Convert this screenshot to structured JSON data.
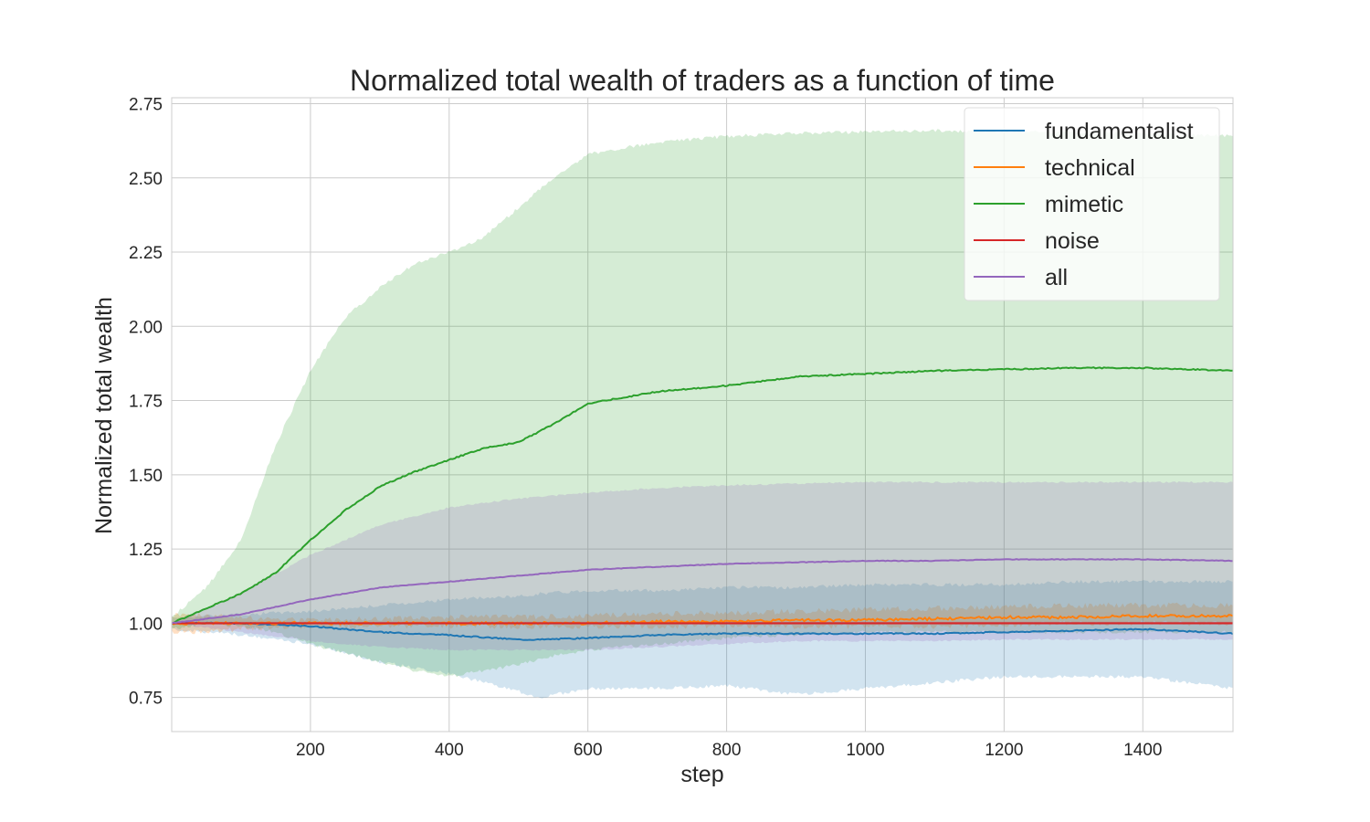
{
  "chart_data": {
    "type": "line",
    "title": "Normalized total wealth of traders as a function of time",
    "xlabel": "step",
    "ylabel": "Normalized total wealth",
    "xlim": [
      0,
      1530
    ],
    "ylim": [
      0.635,
      2.77
    ],
    "xticks": [
      200,
      400,
      600,
      800,
      1000,
      1200,
      1400
    ],
    "yticks": [
      0.75,
      1.0,
      1.25,
      1.5,
      1.75,
      2.0,
      2.25,
      2.5,
      2.75
    ],
    "ytick_labels": [
      "0.75",
      "1.00",
      "1.25",
      "1.50",
      "1.75",
      "2.00",
      "2.25",
      "2.50",
      "2.75"
    ],
    "grid": true,
    "legend_position": "top-right",
    "series": [
      {
        "name": "fundamentalist",
        "color": "#1f77b4",
        "x": [
          0,
          100,
          200,
          300,
          400,
          500,
          530,
          600,
          700,
          800,
          900,
          1000,
          1100,
          1200,
          1300,
          1400,
          1530
        ],
        "mean": [
          1.0,
          1.0,
          0.99,
          0.97,
          0.96,
          0.945,
          0.945,
          0.95,
          0.96,
          0.965,
          0.965,
          0.965,
          0.965,
          0.97,
          0.975,
          0.98,
          0.965
        ],
        "lower": [
          0.98,
          0.96,
          0.93,
          0.87,
          0.83,
          0.77,
          0.75,
          0.78,
          0.78,
          0.79,
          0.76,
          0.78,
          0.8,
          0.82,
          0.82,
          0.82,
          0.78
        ],
        "upper": [
          1.02,
          1.03,
          1.04,
          1.06,
          1.08,
          1.09,
          1.1,
          1.11,
          1.11,
          1.12,
          1.12,
          1.13,
          1.13,
          1.13,
          1.14,
          1.14,
          1.14
        ]
      },
      {
        "name": "technical",
        "color": "#ff7f0e",
        "x": [
          0,
          100,
          200,
          300,
          400,
          500,
          600,
          700,
          800,
          900,
          1000,
          1100,
          1200,
          1300,
          1400,
          1530
        ],
        "mean": [
          1.0,
          1.0,
          1.0,
          1.0,
          1.0,
          1.0,
          1.0,
          1.005,
          1.005,
          1.01,
          1.01,
          1.015,
          1.02,
          1.02,
          1.025,
          1.025
        ],
        "lower": [
          0.97,
          0.98,
          0.99,
          0.99,
          0.99,
          0.99,
          0.99,
          0.99,
          0.99,
          0.99,
          0.99,
          0.99,
          0.995,
          1.0,
          1.0,
          1.0
        ],
        "upper": [
          1.03,
          1.02,
          1.01,
          1.015,
          1.02,
          1.02,
          1.025,
          1.03,
          1.035,
          1.04,
          1.045,
          1.05,
          1.055,
          1.06,
          1.06,
          1.06
        ]
      },
      {
        "name": "mimetic",
        "color": "#2ca02c",
        "x": [
          0,
          50,
          100,
          150,
          200,
          250,
          300,
          350,
          400,
          450,
          500,
          550,
          600,
          700,
          800,
          900,
          1000,
          1100,
          1200,
          1300,
          1400,
          1530
        ],
        "mean": [
          1.0,
          1.05,
          1.1,
          1.17,
          1.28,
          1.38,
          1.46,
          1.51,
          1.55,
          1.59,
          1.61,
          1.67,
          1.74,
          1.78,
          1.8,
          1.83,
          1.84,
          1.85,
          1.855,
          1.86,
          1.86,
          1.85
        ],
        "lower": [
          0.98,
          1.0,
          0.99,
          0.97,
          0.93,
          0.9,
          0.87,
          0.84,
          0.82,
          0.84,
          0.86,
          0.89,
          0.91,
          0.93,
          0.95,
          0.96,
          0.97,
          0.97,
          0.97,
          0.97,
          0.97,
          0.97
        ],
        "upper": [
          1.02,
          1.12,
          1.28,
          1.6,
          1.85,
          2.03,
          2.13,
          2.21,
          2.25,
          2.3,
          2.4,
          2.5,
          2.58,
          2.62,
          2.64,
          2.65,
          2.655,
          2.66,
          2.655,
          2.655,
          2.65,
          2.64
        ]
      },
      {
        "name": "noise",
        "color": "#d62728",
        "x": [
          0,
          300,
          600,
          900,
          1200,
          1530
        ],
        "mean": [
          1.0,
          1.0,
          1.0,
          1.0,
          1.0,
          1.0
        ],
        "lower": [
          0.995,
          0.995,
          0.995,
          0.995,
          0.995,
          0.995
        ],
        "upper": [
          1.005,
          1.005,
          1.005,
          1.005,
          1.005,
          1.005
        ]
      },
      {
        "name": "all",
        "color": "#9467bd",
        "x": [
          0,
          100,
          200,
          300,
          400,
          500,
          600,
          700,
          800,
          900,
          1000,
          1100,
          1200,
          1300,
          1400,
          1530
        ],
        "mean": [
          1.0,
          1.03,
          1.08,
          1.12,
          1.14,
          1.16,
          1.18,
          1.19,
          1.2,
          1.205,
          1.21,
          1.21,
          1.215,
          1.215,
          1.215,
          1.21
        ],
        "lower": [
          1.0,
          0.97,
          0.94,
          0.92,
          0.91,
          0.91,
          0.91,
          0.92,
          0.93,
          0.94,
          0.94,
          0.94,
          0.945,
          0.945,
          0.945,
          0.945
        ],
        "upper": [
          1.0,
          1.1,
          1.23,
          1.33,
          1.39,
          1.42,
          1.44,
          1.455,
          1.465,
          1.47,
          1.475,
          1.475,
          1.475,
          1.475,
          1.475,
          1.475
        ]
      }
    ]
  }
}
